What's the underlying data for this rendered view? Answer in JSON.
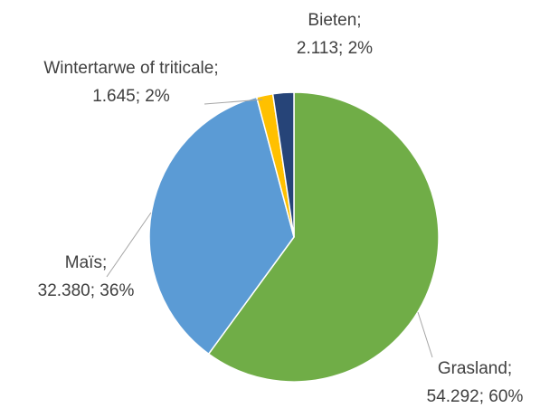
{
  "chart_data": {
    "type": "pie",
    "categories": [
      "Grasland;",
      "Maïs;",
      "Wintertarwe of triticale;",
      "Bieten;"
    ],
    "values": [
      54292,
      32380,
      1645,
      2113
    ],
    "value_labels": [
      "54.292; 60%",
      "32.380; 36%",
      "1.645; 2%",
      "2.113; 2%"
    ],
    "colors": [
      "#70ad47",
      "#5b9bd5",
      "#ffc000",
      "#264478"
    ]
  }
}
